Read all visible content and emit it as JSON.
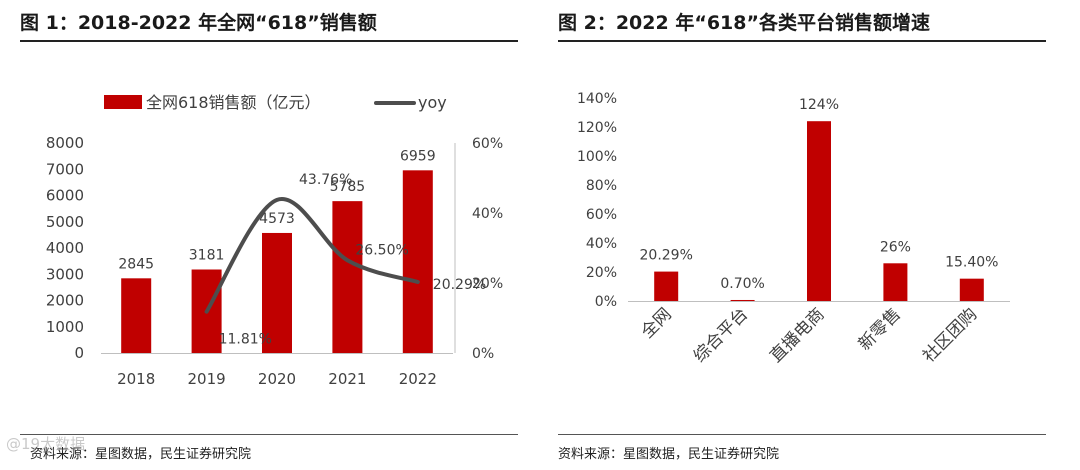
{
  "figure1": {
    "title": "图 1：2018-2022 年全网“618”销售额",
    "source": "资料来源：星图数据，民生证券研究院"
  },
  "figure2": {
    "title": "图 2：2022 年“618”各类平台销售额增速",
    "source": "资料来源：星图数据，民生证券研究院"
  },
  "watermark": "@19大数据",
  "colors": {
    "bar": "#c00000",
    "line": "#4d4d4d",
    "axis": "#bfbfbf",
    "text": "#404040"
  },
  "chart_data": [
    {
      "type": "bar",
      "categories": [
        "2018",
        "2019",
        "2020",
        "2021",
        "2022"
      ],
      "series": [
        {
          "name": "全网618销售额（亿元）",
          "type": "bar",
          "axis": "left",
          "values": [
            2845,
            3181,
            4573,
            5785,
            6959
          ],
          "labels": [
            "2845",
            "3181",
            "4573",
            "5785",
            "6959"
          ]
        },
        {
          "name": "yoy",
          "type": "line",
          "axis": "right",
          "values": [
            null,
            11.81,
            43.76,
            26.5,
            20.29
          ],
          "labels": [
            "",
            "11.81%",
            "43.76%",
            "26.50%",
            "20.29%"
          ]
        }
      ],
      "y_left": {
        "min": 0,
        "max": 8000,
        "ticks": [
          "0",
          "1000",
          "2000",
          "3000",
          "4000",
          "5000",
          "6000",
          "7000",
          "8000"
        ]
      },
      "y_right": {
        "min": 0,
        "max": 60,
        "ticks": [
          "0%",
          "20%",
          "40%",
          "60%"
        ]
      },
      "legend": "top"
    },
    {
      "type": "bar",
      "categories": [
        "全网",
        "综合平台",
        "直播电商",
        "新零售",
        "社区团购"
      ],
      "values": [
        20.29,
        0.7,
        124,
        26,
        15.4
      ],
      "labels": [
        "20.29%",
        "0.70%",
        "124%",
        "26%",
        "15.40%"
      ],
      "y": {
        "min": 0,
        "max": 140,
        "ticks": [
          "0%",
          "20%",
          "40%",
          "60%",
          "80%",
          "100%",
          "120%",
          "140%"
        ]
      }
    }
  ]
}
